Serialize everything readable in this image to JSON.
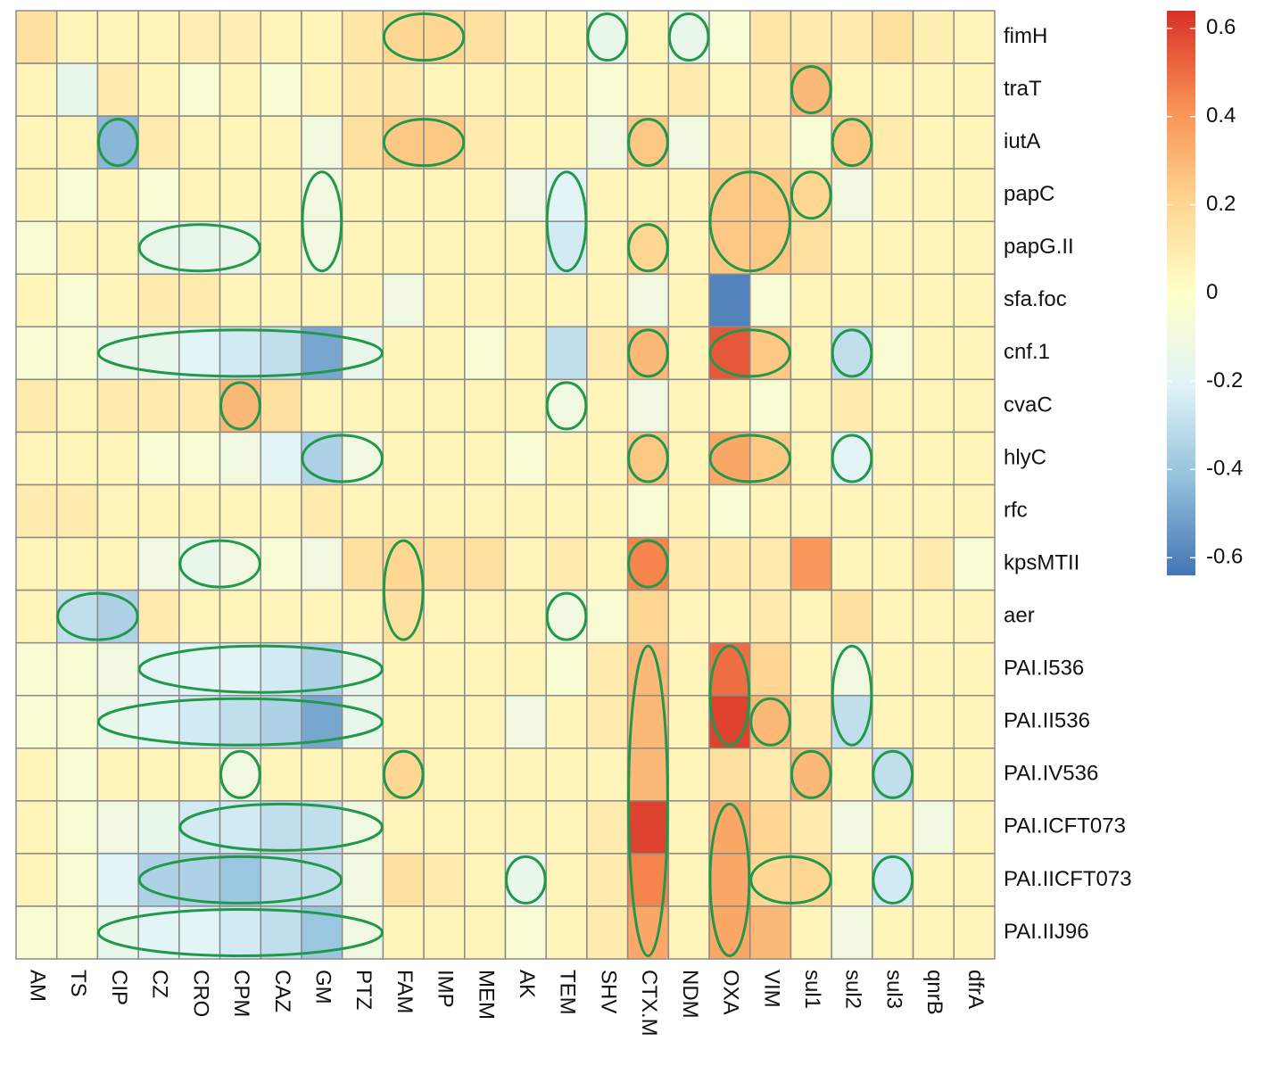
{
  "chart_data": {
    "type": "heatmap",
    "x_categories": [
      "AM",
      "TS",
      "CIP",
      "CZ",
      "CRO",
      "CPM",
      "CAZ",
      "GM",
      "PTZ",
      "FAM",
      "IMP",
      "MEM",
      "AK",
      "TEM",
      "SHV",
      "CTX.M",
      "NDM",
      "OXA",
      "VIM",
      "sul1",
      "sul2",
      "sul3",
      "qnrB",
      "dfrA"
    ],
    "y_categories": [
      "fimH",
      "traT",
      "iutA",
      "papC",
      "papG.II",
      "sfa.foc",
      "cnf.1",
      "cvaC",
      "hlyC",
      "rfc",
      "kpsMTII",
      "aer",
      "PAI.I536",
      "PAI.II536",
      "PAI.IV536",
      "PAI.ICFT073",
      "PAI.IICFT073",
      "PAI.IIJ96"
    ],
    "values": [
      [
        0.15,
        0.05,
        0.05,
        0.05,
        0.08,
        0.08,
        0.05,
        0.05,
        0.12,
        0.2,
        0.2,
        0.15,
        0.05,
        0.05,
        -0.15,
        0.05,
        -0.15,
        -0.05,
        0.12,
        0.1,
        0.1,
        0.15,
        0.08,
        0.05
      ],
      [
        0.05,
        -0.15,
        0.1,
        0.05,
        -0.05,
        0.05,
        -0.05,
        0.05,
        0.1,
        0.1,
        0.05,
        0.05,
        0.05,
        0.05,
        -0.05,
        0.05,
        0.1,
        0.05,
        0.1,
        0.3,
        0.05,
        0.05,
        0.05,
        0.05
      ],
      [
        0.05,
        0.05,
        -0.45,
        0.1,
        0.05,
        0.05,
        0.05,
        -0.1,
        0.15,
        0.25,
        0.25,
        0.1,
        0.05,
        0.05,
        -0.1,
        0.25,
        -0.1,
        0.1,
        0.1,
        -0.05,
        0.25,
        0.1,
        0.05,
        0.05
      ],
      [
        0.05,
        -0.05,
        0.05,
        -0.05,
        0.05,
        0.05,
        0.05,
        -0.1,
        0.05,
        0.05,
        0.05,
        0.05,
        -0.1,
        -0.2,
        0.05,
        0.05,
        0.05,
        0.25,
        0.25,
        0.2,
        -0.1,
        0.05,
        0.05,
        0.05
      ],
      [
        -0.05,
        0.05,
        0.05,
        -0.15,
        -0.15,
        -0.15,
        0.05,
        -0.1,
        0.05,
        0.05,
        0.05,
        0.05,
        0.05,
        -0.25,
        0.05,
        0.2,
        0.05,
        0.25,
        0.25,
        0.15,
        0.05,
        0.05,
        0.05,
        0.05
      ],
      [
        0.05,
        -0.05,
        0.05,
        0.1,
        0.1,
        0.05,
        0.05,
        0.05,
        0.05,
        -0.1,
        0.05,
        0.05,
        0.05,
        0.05,
        0.05,
        -0.1,
        0.05,
        -0.6,
        -0.05,
        0.05,
        0.05,
        0.05,
        0.05,
        0.05
      ],
      [
        -0.05,
        -0.05,
        -0.15,
        -0.15,
        -0.2,
        -0.25,
        -0.3,
        -0.5,
        -0.15,
        0.05,
        0.05,
        -0.05,
        0.05,
        -0.3,
        0.1,
        0.3,
        0.05,
        0.55,
        0.25,
        0.05,
        -0.3,
        -0.05,
        0.05,
        0.05
      ],
      [
        0.1,
        0.05,
        0.1,
        0.1,
        0.1,
        0.3,
        0.15,
        0.05,
        0.05,
        0.05,
        0.05,
        0.05,
        0.05,
        -0.1,
        0.05,
        -0.1,
        0.05,
        0.05,
        -0.05,
        0.05,
        0.1,
        0.05,
        0.05,
        0.05
      ],
      [
        0.05,
        0.05,
        0.05,
        -0.05,
        -0.05,
        -0.1,
        -0.2,
        -0.35,
        -0.1,
        0.05,
        0.05,
        0.05,
        -0.05,
        0.05,
        0.05,
        0.25,
        0.05,
        0.35,
        0.25,
        0.05,
        -0.2,
        0.05,
        0.05,
        0.05
      ],
      [
        0.1,
        0.1,
        0.05,
        0.05,
        0.05,
        0.05,
        0.05,
        0.1,
        0.05,
        0.05,
        0.05,
        0.05,
        0.05,
        0.05,
        0.05,
        -0.05,
        0.05,
        -0.05,
        0.05,
        0.05,
        0.05,
        0.05,
        0.05,
        0.05
      ],
      [
        0.05,
        0.05,
        0.05,
        -0.1,
        -0.15,
        -0.1,
        -0.05,
        -0.1,
        0.15,
        0.2,
        0.15,
        0.15,
        0.05,
        0.1,
        0.05,
        0.45,
        0.1,
        0.1,
        0.1,
        0.4,
        0.05,
        0.05,
        0.1,
        -0.05
      ],
      [
        0.05,
        -0.3,
        -0.35,
        0.1,
        0.05,
        0.05,
        0.05,
        0.05,
        0.05,
        0.15,
        0.05,
        0.05,
        0.05,
        -0.1,
        -0.05,
        0.2,
        0.05,
        0.05,
        0.1,
        0.05,
        0.15,
        0.05,
        0.05,
        0.05
      ],
      [
        -0.05,
        -0.05,
        -0.1,
        -0.2,
        -0.2,
        -0.2,
        -0.25,
        -0.35,
        -0.15,
        0.05,
        0.05,
        0.05,
        0.05,
        -0.05,
        0.1,
        0.3,
        0.05,
        0.5,
        0.2,
        0.05,
        -0.1,
        0.05,
        0.05,
        0.05
      ],
      [
        -0.05,
        -0.05,
        -0.15,
        -0.2,
        -0.25,
        -0.3,
        -0.35,
        -0.5,
        -0.15,
        0.05,
        0.05,
        0.05,
        -0.1,
        0.05,
        0.1,
        0.3,
        0.05,
        0.6,
        0.3,
        0.1,
        -0.3,
        0.05,
        0.05,
        0.05
      ],
      [
        0.05,
        -0.05,
        0.05,
        0.05,
        0.05,
        -0.1,
        0.05,
        0.05,
        0.05,
        0.2,
        0.05,
        0.05,
        0.05,
        0.05,
        0.05,
        0.3,
        0.05,
        0.15,
        0.1,
        0.3,
        0.05,
        -0.3,
        0.05,
        0.05
      ],
      [
        0.05,
        -0.05,
        -0.1,
        -0.15,
        -0.25,
        -0.25,
        -0.3,
        -0.3,
        -0.1,
        0.05,
        0.05,
        0.05,
        0.05,
        0.05,
        0.1,
        0.6,
        0.05,
        0.35,
        0.2,
        0.1,
        -0.1,
        0.05,
        -0.1,
        0.05
      ],
      [
        0.05,
        -0.05,
        -0.2,
        -0.35,
        -0.35,
        -0.4,
        -0.3,
        -0.3,
        -0.1,
        0.15,
        0.1,
        0.05,
        -0.15,
        0.05,
        0.1,
        0.45,
        0.05,
        0.35,
        0.2,
        0.2,
        0.05,
        -0.25,
        0.05,
        0.05
      ],
      [
        -0.05,
        -0.05,
        -0.15,
        -0.2,
        -0.2,
        -0.25,
        -0.3,
        -0.4,
        -0.1,
        0.05,
        0.05,
        0.05,
        -0.05,
        0.05,
        0.1,
        0.35,
        0.05,
        0.35,
        0.3,
        0.05,
        -0.1,
        0.05,
        0.05,
        0.05
      ]
    ],
    "clim": [
      -0.64,
      0.64
    ],
    "cticks": [
      -0.6,
      -0.4,
      -0.2,
      0,
      0.2,
      0.4,
      0.6
    ],
    "colors": [
      "#4575b4",
      "#91bfdb",
      "#e0f3f8",
      "#ffffc8",
      "#fed48e",
      "#f98e52",
      "#d73027"
    ],
    "highlight_color": "#22994a",
    "highlights": [
      {
        "rows": [
          0,
          0
        ],
        "cols": [
          9,
          10
        ]
      },
      {
        "rows": [
          0,
          0
        ],
        "cols": [
          14,
          14
        ]
      },
      {
        "rows": [
          0,
          0
        ],
        "cols": [
          16,
          16
        ]
      },
      {
        "rows": [
          1,
          1
        ],
        "cols": [
          19,
          19
        ]
      },
      {
        "rows": [
          2,
          2
        ],
        "cols": [
          2,
          2
        ]
      },
      {
        "rows": [
          2,
          2
        ],
        "cols": [
          9,
          10
        ]
      },
      {
        "rows": [
          2,
          2
        ],
        "cols": [
          15,
          15
        ]
      },
      {
        "rows": [
          2,
          2
        ],
        "cols": [
          20,
          20
        ]
      },
      {
        "rows": [
          3,
          4
        ],
        "cols": [
          7,
          7
        ]
      },
      {
        "rows": [
          3,
          4
        ],
        "cols": [
          13,
          13
        ]
      },
      {
        "rows": [
          3,
          4
        ],
        "cols": [
          17,
          18
        ]
      },
      {
        "rows": [
          3,
          3
        ],
        "cols": [
          19,
          19
        ]
      },
      {
        "rows": [
          4,
          4
        ],
        "cols": [
          3,
          5
        ]
      },
      {
        "rows": [
          4,
          4
        ],
        "cols": [
          15,
          15
        ]
      },
      {
        "rows": [
          6,
          6
        ],
        "cols": [
          2,
          8
        ]
      },
      {
        "rows": [
          6,
          6
        ],
        "cols": [
          15,
          15
        ]
      },
      {
        "rows": [
          6,
          6
        ],
        "cols": [
          17,
          18
        ]
      },
      {
        "rows": [
          6,
          6
        ],
        "cols": [
          20,
          20
        ]
      },
      {
        "rows": [
          7,
          7
        ],
        "cols": [
          5,
          5
        ]
      },
      {
        "rows": [
          7,
          7
        ],
        "cols": [
          13,
          13
        ]
      },
      {
        "rows": [
          8,
          8
        ],
        "cols": [
          7,
          8
        ]
      },
      {
        "rows": [
          8,
          8
        ],
        "cols": [
          15,
          15
        ]
      },
      {
        "rows": [
          8,
          8
        ],
        "cols": [
          17,
          18
        ]
      },
      {
        "rows": [
          8,
          8
        ],
        "cols": [
          20,
          20
        ]
      },
      {
        "rows": [
          10,
          10
        ],
        "cols": [
          4,
          5
        ]
      },
      {
        "rows": [
          10,
          11
        ],
        "cols": [
          9,
          9
        ]
      },
      {
        "rows": [
          10,
          10
        ],
        "cols": [
          15,
          15
        ]
      },
      {
        "rows": [
          11,
          11
        ],
        "cols": [
          1,
          2
        ]
      },
      {
        "rows": [
          11,
          11
        ],
        "cols": [
          13,
          13
        ]
      },
      {
        "rows": [
          12,
          12
        ],
        "cols": [
          3,
          8
        ]
      },
      {
        "rows": [
          12,
          17
        ],
        "cols": [
          15,
          15
        ]
      },
      {
        "rows": [
          12,
          13
        ],
        "cols": [
          17,
          17
        ]
      },
      {
        "rows": [
          12,
          13
        ],
        "cols": [
          20,
          20
        ]
      },
      {
        "rows": [
          13,
          13
        ],
        "cols": [
          2,
          8
        ]
      },
      {
        "rows": [
          13,
          13
        ],
        "cols": [
          18,
          18
        ]
      },
      {
        "rows": [
          14,
          14
        ],
        "cols": [
          5,
          5
        ]
      },
      {
        "rows": [
          14,
          14
        ],
        "cols": [
          9,
          9
        ]
      },
      {
        "rows": [
          14,
          14
        ],
        "cols": [
          19,
          19
        ]
      },
      {
        "rows": [
          14,
          14
        ],
        "cols": [
          21,
          21
        ]
      },
      {
        "rows": [
          15,
          15
        ],
        "cols": [
          4,
          8
        ]
      },
      {
        "rows": [
          15,
          17
        ],
        "cols": [
          17,
          17
        ]
      },
      {
        "rows": [
          16,
          16
        ],
        "cols": [
          3,
          7
        ]
      },
      {
        "rows": [
          16,
          16
        ],
        "cols": [
          12,
          12
        ]
      },
      {
        "rows": [
          16,
          16
        ],
        "cols": [
          18,
          19
        ]
      },
      {
        "rows": [
          16,
          16
        ],
        "cols": [
          21,
          21
        ]
      },
      {
        "rows": [
          17,
          17
        ],
        "cols": [
          2,
          8
        ]
      }
    ]
  }
}
